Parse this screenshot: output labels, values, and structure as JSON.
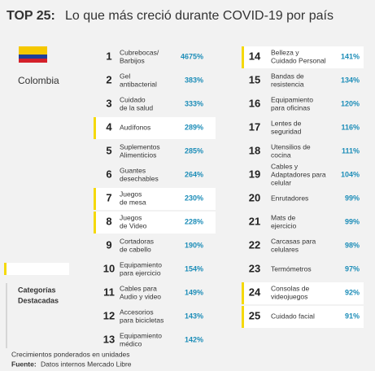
{
  "header": {
    "title_bold": "TOP 25:",
    "title": "Lo que más creció durante COVID-19 por país"
  },
  "country": "Colombia",
  "items": [
    {
      "rank": "1",
      "lines": [
        "Cubrebocas/",
        "Barbijos"
      ],
      "value": "4675%",
      "highlight": false
    },
    {
      "rank": "2",
      "lines": [
        "Gel",
        "antibacterial"
      ],
      "value": "383%",
      "highlight": false
    },
    {
      "rank": "3",
      "lines": [
        "Cuidado",
        "de la salud"
      ],
      "value": "333%",
      "highlight": false
    },
    {
      "rank": "4",
      "lines": [
        "Audífonos"
      ],
      "value": "289%",
      "highlight": true
    },
    {
      "rank": "5",
      "lines": [
        "Suplementos",
        "Alimenticios"
      ],
      "value": "285%",
      "highlight": false
    },
    {
      "rank": "6",
      "lines": [
        "Guantes",
        "desechables"
      ],
      "value": "264%",
      "highlight": false
    },
    {
      "rank": "7",
      "lines": [
        "Juegos",
        "de mesa"
      ],
      "value": "230%",
      "highlight": true
    },
    {
      "rank": "8",
      "lines": [
        "Juegos",
        "de Video"
      ],
      "value": "228%",
      "highlight": true
    },
    {
      "rank": "9",
      "lines": [
        "Cortadoras",
        "de cabello"
      ],
      "value": "190%",
      "highlight": false
    },
    {
      "rank": "10",
      "lines": [
        "Equipamiento",
        "para ejercicio"
      ],
      "value": "154%",
      "highlight": false
    },
    {
      "rank": "11",
      "lines": [
        "Cables para",
        "Audio y video"
      ],
      "value": "149%",
      "highlight": false
    },
    {
      "rank": "12",
      "lines": [
        "Accesorios",
        "para bicicletas"
      ],
      "value": "143%",
      "highlight": false
    },
    {
      "rank": "13",
      "lines": [
        "Equipamiento",
        "médico"
      ],
      "value": "142%",
      "highlight": false
    },
    {
      "rank": "14",
      "lines": [
        "Belleza y",
        "Cuidado Personal"
      ],
      "value": "141%",
      "highlight": true
    },
    {
      "rank": "15",
      "lines": [
        "Bandas de",
        "resistencia"
      ],
      "value": "134%",
      "highlight": false
    },
    {
      "rank": "16",
      "lines": [
        "Equipamiento",
        "para oficinas"
      ],
      "value": "120%",
      "highlight": false
    },
    {
      "rank": "17",
      "lines": [
        "Lentes de",
        "seguridad"
      ],
      "value": "116%",
      "highlight": false
    },
    {
      "rank": "18",
      "lines": [
        "Utensilios de",
        "cocina"
      ],
      "value": "111%",
      "highlight": false
    },
    {
      "rank": "19",
      "lines": [
        "Cables y",
        "Adaptadores para",
        "celular"
      ],
      "value": "104%",
      "highlight": false
    },
    {
      "rank": "20",
      "lines": [
        "Enrutadores"
      ],
      "value": "99%",
      "highlight": false
    },
    {
      "rank": "21",
      "lines": [
        "Mats de",
        "ejercicio"
      ],
      "value": "99%",
      "highlight": false
    },
    {
      "rank": "22",
      "lines": [
        "Carcasas para",
        "celulares"
      ],
      "value": "98%",
      "highlight": false
    },
    {
      "rank": "23",
      "lines": [
        "Termómetros"
      ],
      "value": "97%",
      "highlight": false
    },
    {
      "rank": "24",
      "lines": [
        "Consolas de",
        "videojuegos"
      ],
      "value": "92%",
      "highlight": true
    },
    {
      "rank": "25",
      "lines": [
        "Cuidado facial"
      ],
      "value": "91%",
      "highlight": true
    }
  ],
  "legend": {
    "lines": [
      "Categorías",
      "Destacadas"
    ]
  },
  "footer": {
    "note": "Crecimientos ponderados en unidades",
    "source_label": "Fuente:",
    "source": "Datos internos Mercado Libre"
  }
}
